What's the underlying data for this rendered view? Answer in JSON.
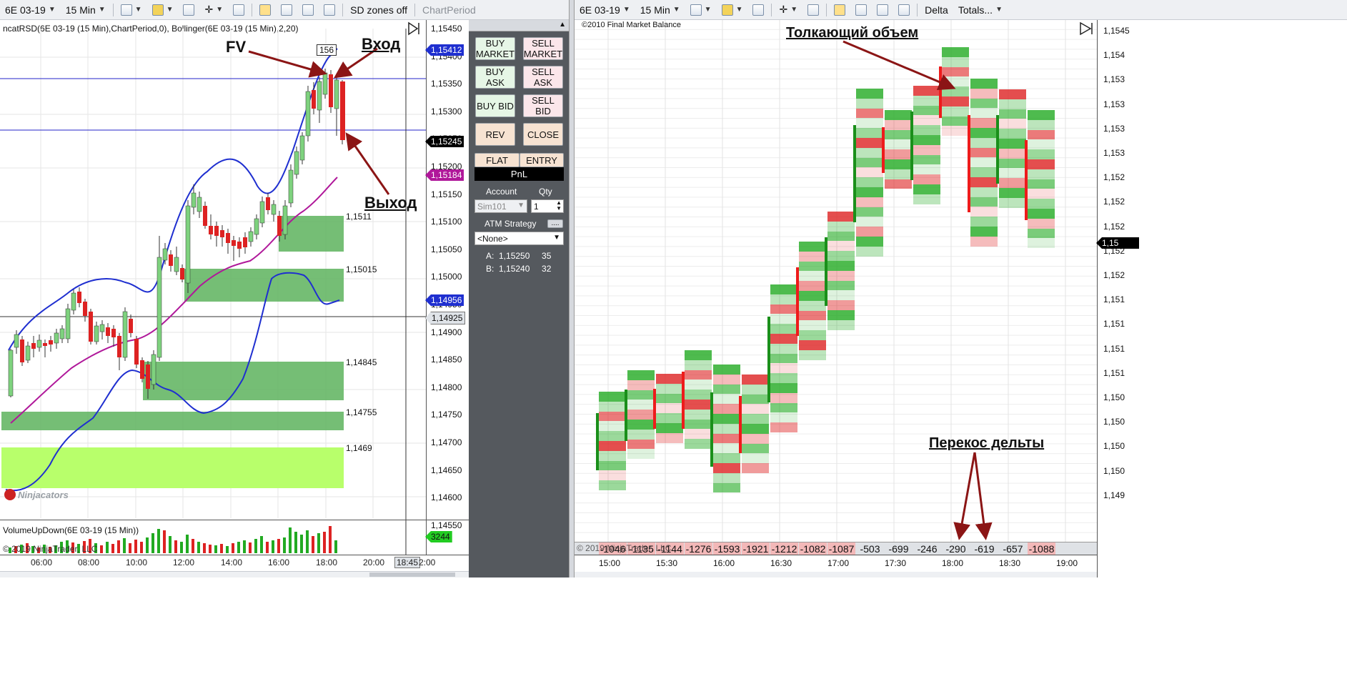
{
  "left_chart": {
    "toolbar": {
      "instrument": "6E 03-19",
      "timeframe": "15 Min",
      "sd_zones": "SD zones off",
      "chart_period": "ChartPeriod"
    },
    "indicator_label": "ncatRSD(6E  03-19 (15 Min),ChartPeriod,0),  Bollinger(6E  03-19 (15 Min),2,20)",
    "price_axis": [
      "1,15450",
      "1,15400",
      "1,15350",
      "1,15300",
      "1,15250",
      "1,15200",
      "1,15150",
      "1,15100",
      "1,15050",
      "1,15000",
      "1,14950",
      "1,14900",
      "1,14850",
      "1,14800",
      "1,14750",
      "1,14700",
      "1,14650",
      "1,14600",
      "1,14550"
    ],
    "price_tags": {
      "bb_upper": "1,15412",
      "last": "1,15245",
      "sma": "1,15184",
      "bb_lower": "1,14956",
      "crosshair": "1,14925"
    },
    "zone_labels": [
      "1,1511",
      "1,15015",
      "1,14845",
      "1,14755",
      "1,1469"
    ],
    "bar_count_label": "156",
    "annotations": {
      "fv": "FV",
      "entry": "Вход",
      "exit": "Выход"
    },
    "watermark": "Ninjacators",
    "volume_label": "VolumeUpDown(6E  03-19 (15 Min))",
    "volume_value": "3244",
    "copyright": "© 2019 NinjaTrader, LLC",
    "time_axis": [
      "06:00",
      "08:00",
      "10:00",
      "12:00",
      "14:00",
      "16:00",
      "18:00",
      "20:00"
    ],
    "time_cursor": "18:45",
    "time_cursor_tail": "2:00",
    "colors": {
      "up": "#7ed27e",
      "down": "#dd2222",
      "bb": "#1f2fd0",
      "sma": "#b0189a",
      "zone": "#5db35d",
      "zone_light": "#b8ff6b"
    }
  },
  "trade_panel": {
    "buttons": {
      "buy_market": "BUY MARKET",
      "sell_market": "SELL MARKET",
      "buy_ask": "BUY ASK",
      "sell_ask": "SELL ASK",
      "buy_bid": "BUY BID",
      "sell_bid": "SELL BID",
      "rev": "REV",
      "close": "CLOSE",
      "flat": "FLAT",
      "entry": "ENTRY"
    },
    "pnl": "PnL",
    "account_label": "Account",
    "qty_label": "Qty",
    "account_value": "Sim101",
    "qty_value": "1",
    "atm_label": "ATM Strategy",
    "atm_button": "....",
    "atm_value": "<None>",
    "ask_line": "A:  1,15250     35",
    "bid_line": "B:  1,15240     32"
  },
  "right_chart": {
    "toolbar": {
      "instrument": "6E 03-19",
      "timeframe": "15 Min",
      "mode": "Delta",
      "totals": "Totals..."
    },
    "source_label": "©2010 Final Market Balance",
    "annotations": {
      "pushing_volume": "Толкающий объем",
      "delta_skew": "Перекос дельты"
    },
    "price_axis": [
      "1,1545",
      "1,154",
      "1,153",
      "1,153",
      "1,153",
      "1,153",
      "1,152",
      "1,152",
      "1,152",
      "1,152",
      "1,152",
      "1,151",
      "1,151",
      "1,151",
      "1,151",
      "1,150",
      "1,150",
      "1,150",
      "1,150",
      "1,149"
    ],
    "last_price_tag": "1,15",
    "copyright": "© 2019 NinjaTrader, LLC",
    "deltas": [
      "-1046",
      "-1135",
      "-1144",
      "-1276",
      "-1593",
      "-1921",
      "-1212",
      "-1082",
      "-1087",
      "-503",
      "-699",
      "-246",
      "-290",
      "-619",
      "-657",
      "-1088"
    ],
    "time_axis": [
      "15:00",
      "15:30",
      "16:00",
      "16:30",
      "17:00",
      "17:30",
      "18:00",
      "18:30",
      "19:00"
    ]
  }
}
